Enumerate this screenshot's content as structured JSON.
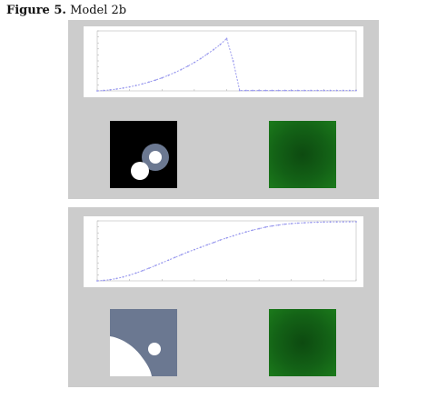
{
  "caption": {
    "label": "Figure 5.",
    "text": "Model 2b"
  },
  "colors": {
    "panel_bg": "#cccccc",
    "plot_bg": "#ffffff",
    "series_line": "#9999ee",
    "green_field": "#136116",
    "mask_black": "#000000",
    "mask_gray": "#6b7891",
    "mask_white": "#ffffff"
  },
  "chart_data": [
    {
      "type": "line",
      "title": "",
      "xlabel": "",
      "ylabel": "",
      "xlim": [
        0,
        40
      ],
      "ylim": [
        0,
        300
      ],
      "grid": false,
      "series": [
        {
          "x": [
            0,
            1,
            2,
            3,
            4,
            5,
            6,
            7,
            8,
            9,
            10,
            11,
            12,
            13,
            14,
            15,
            16,
            17,
            18,
            19,
            20,
            21,
            22,
            23,
            24,
            25,
            26,
            27,
            28,
            29,
            30,
            31,
            32,
            33,
            34,
            35,
            36,
            37,
            38,
            39,
            40
          ],
          "values": [
            0,
            2,
            5,
            9,
            14,
            20,
            27,
            35,
            44,
            54,
            65,
            78,
            92,
            107,
            124,
            142,
            162,
            184,
            207,
            232,
            262,
            150,
            2,
            2,
            2,
            2,
            2,
            2,
            2,
            2,
            2,
            2,
            2,
            2,
            2,
            2,
            2,
            2,
            2,
            2,
            2
          ]
        }
      ]
    },
    {
      "type": "line",
      "title": "",
      "xlabel": "",
      "ylabel": "",
      "xlim": [
        0,
        40
      ],
      "ylim": [
        0,
        1000
      ],
      "grid": false,
      "series": [
        {
          "x": [
            0,
            1,
            2,
            3,
            4,
            5,
            6,
            7,
            8,
            9,
            10,
            11,
            12,
            13,
            14,
            15,
            16,
            17,
            18,
            19,
            20,
            21,
            22,
            23,
            24,
            25,
            26,
            27,
            28,
            29,
            30,
            31,
            32,
            33,
            34,
            35,
            36,
            37,
            38,
            39,
            40
          ],
          "values": [
            0,
            8,
            20,
            40,
            65,
            95,
            130,
            170,
            210,
            255,
            300,
            345,
            390,
            435,
            480,
            520,
            560,
            600,
            640,
            680,
            715,
            750,
            785,
            815,
            845,
            870,
            895,
            915,
            930,
            945,
            955,
            962,
            968,
            973,
            977,
            980,
            982,
            983,
            984,
            985,
            985
          ]
        }
      ]
    }
  ]
}
